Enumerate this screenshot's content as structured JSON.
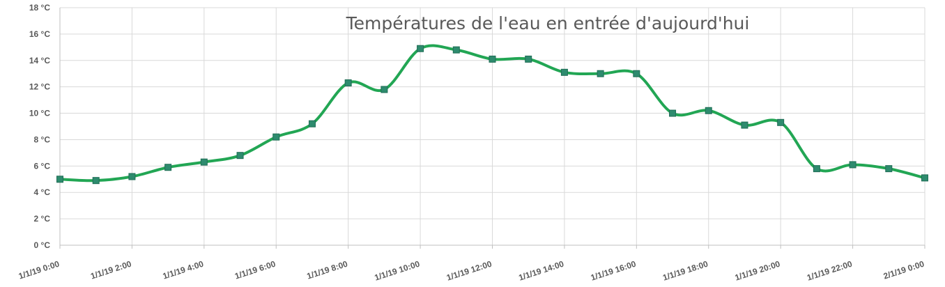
{
  "chart_data": {
    "type": "line",
    "title": "Températures de l'eau en entrée d'aujourd'hui",
    "xlabel": "",
    "ylabel": "",
    "ylim": [
      0,
      18
    ],
    "y_ticks": [
      "0 °C",
      "2 °C",
      "4 °C",
      "6 °C",
      "8 °C",
      "10 °C",
      "12 °C",
      "14 °C",
      "16 °C",
      "18 °C"
    ],
    "x_tick_labels": [
      "1/1/19 0:00",
      "1/1/19 2:00",
      "1/1/19 4:00",
      "1/1/19 6:00",
      "1/1/19 8:00",
      "1/1/19 10:00",
      "1/1/19 12:00",
      "1/1/19 14:00",
      "1/1/19 16:00",
      "1/1/19 18:00",
      "1/1/19 20:00",
      "1/1/19 22:00",
      "2/1/19 0:00"
    ],
    "grid": true,
    "smooth": true,
    "colors": {
      "line": "#22a654",
      "marker": "#2e8b6e",
      "marker_border": "#1f6d55",
      "grid": "#d9d9d9",
      "axis": "#bfbfbf",
      "text": "#595959"
    },
    "series": [
      {
        "x": [
          "1/1/19 0:00",
          "1/1/19 1:00",
          "1/1/19 2:00",
          "1/1/19 3:00",
          "1/1/19 4:00",
          "1/1/19 5:00",
          "1/1/19 6:00",
          "1/1/19 7:00",
          "1/1/19 8:00",
          "1/1/19 9:00",
          "1/1/19 10:00",
          "1/1/19 11:00",
          "1/1/19 12:00",
          "1/1/19 13:00",
          "1/1/19 14:00",
          "1/1/19 15:00",
          "1/1/19 16:00",
          "1/1/19 17:00",
          "1/1/19 18:00",
          "1/1/19 19:00",
          "1/1/19 20:00",
          "1/1/19 21:00",
          "1/1/19 22:00",
          "1/1/19 23:00",
          "2/1/19 0:00"
        ],
        "values": [
          5.0,
          4.9,
          5.2,
          5.9,
          6.3,
          6.8,
          8.2,
          9.2,
          12.3,
          11.8,
          14.9,
          14.8,
          14.1,
          14.1,
          13.1,
          13.0,
          13.0,
          10.0,
          10.2,
          9.1,
          9.3,
          5.8,
          6.1,
          5.8,
          5.1
        ]
      }
    ]
  }
}
